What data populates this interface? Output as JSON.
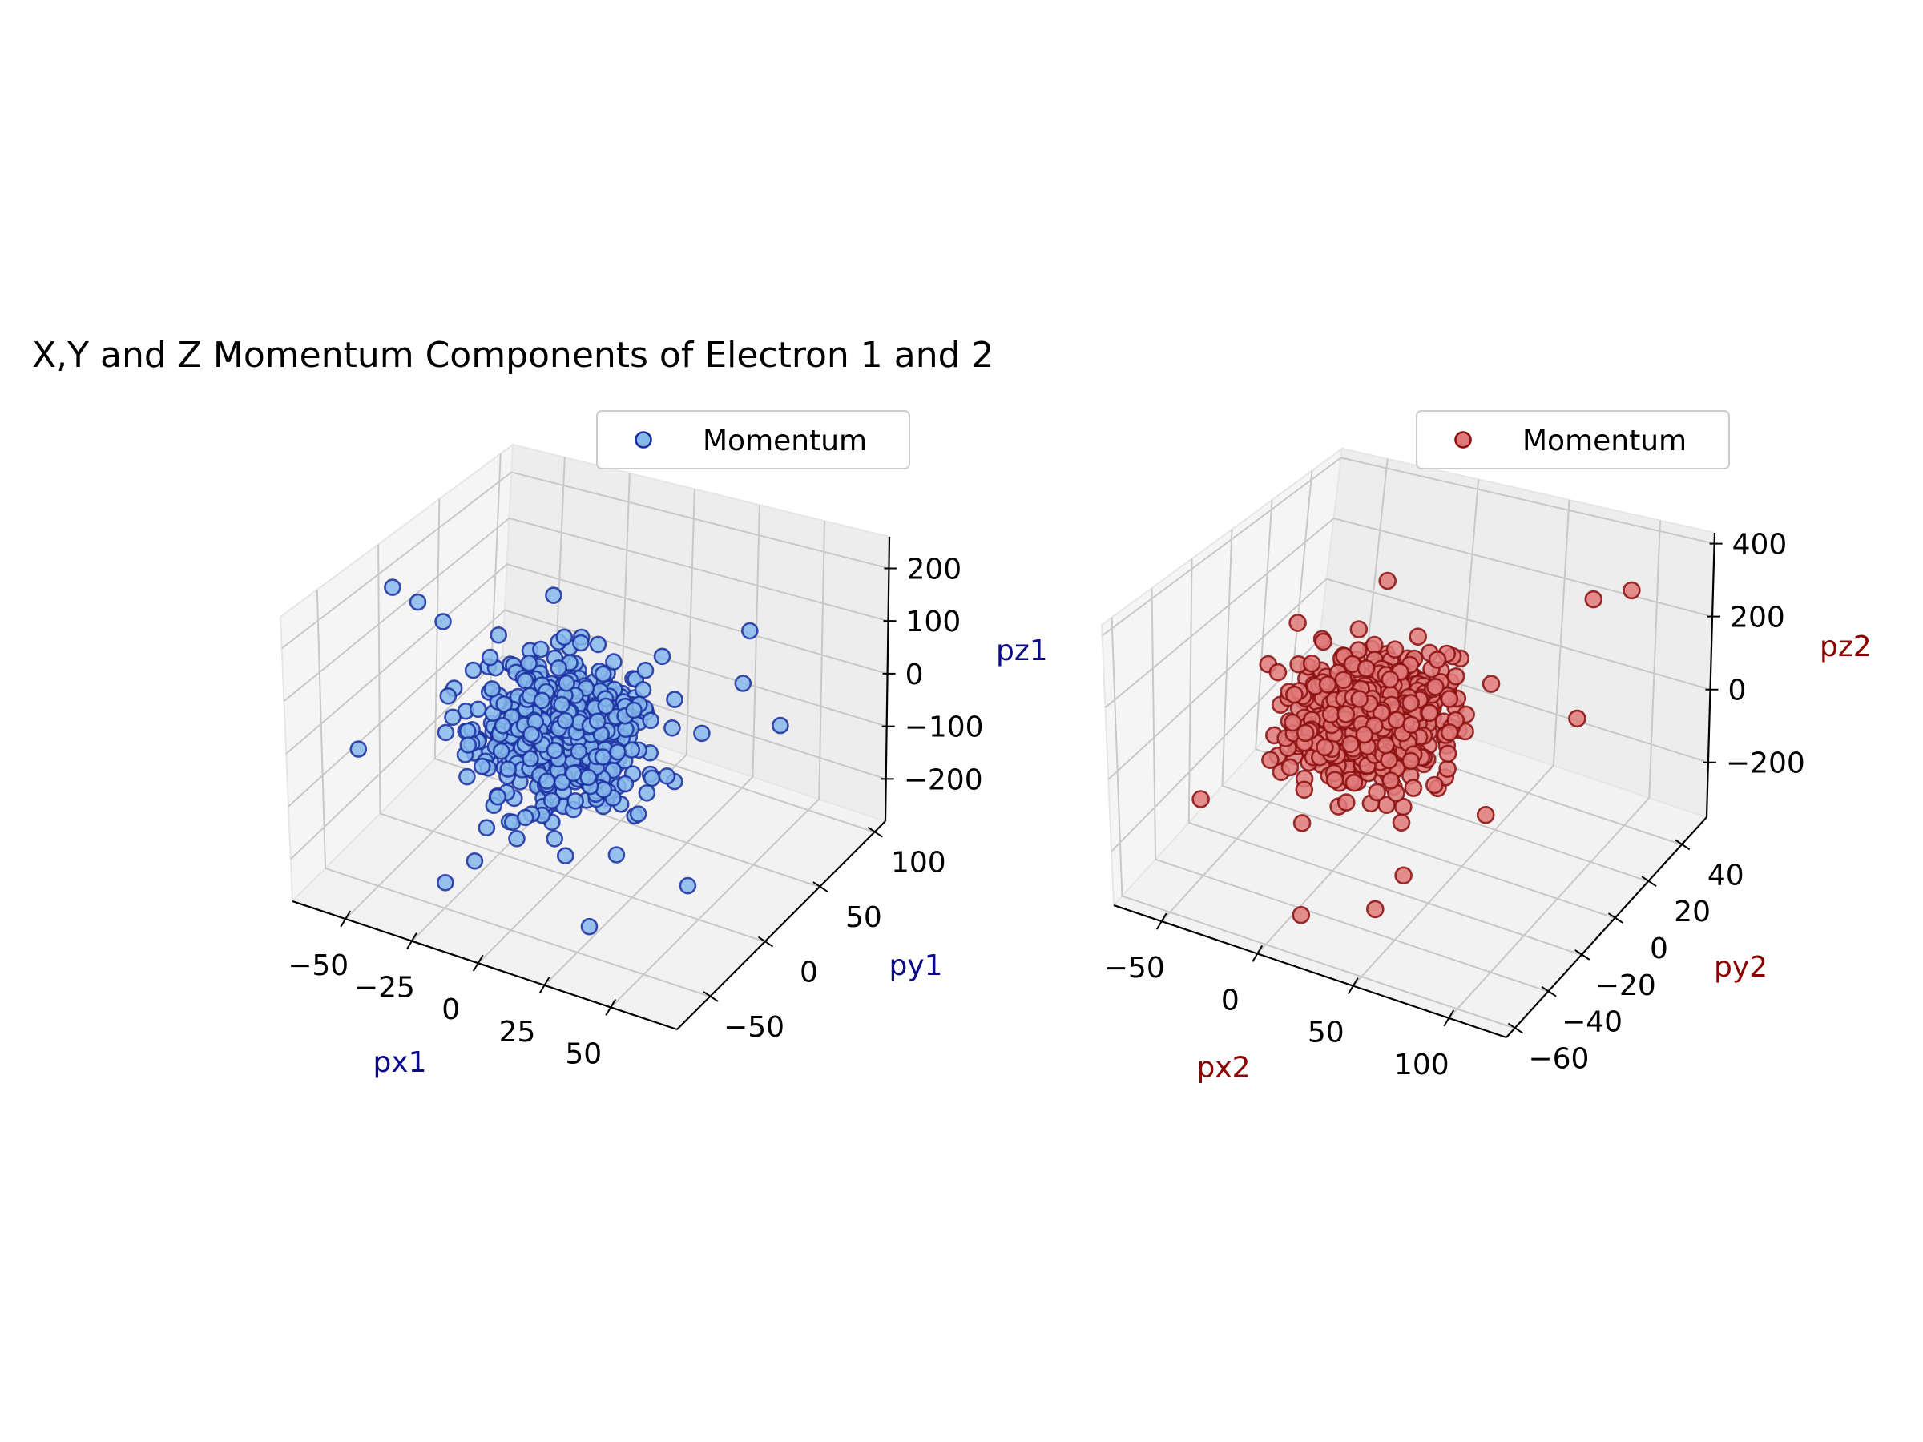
{
  "title": "X,Y and Z Momentum Components of Electron 1 and 2",
  "chart_data": [
    {
      "type": "scatter3d",
      "legend": "Momentum",
      "legend_loc": "upper right",
      "colors": {
        "face": "#87b8ec",
        "edge": "#1a2ea0",
        "label": "#0b0b8a"
      },
      "xlabel": "px1",
      "ylabel": "py1",
      "zlabel": "pz1",
      "xlim": [
        -70,
        75
      ],
      "ylim": [
        -80,
        110
      ],
      "zlim": [
        -280,
        260
      ],
      "xticks": [
        -50,
        -25,
        0,
        25,
        50
      ],
      "xtick_labels": [
        "−50",
        "−25",
        "0",
        "25",
        "50"
      ],
      "yticks": [
        -50,
        0,
        50,
        100
      ],
      "ytick_labels": [
        "−50",
        "0",
        "50",
        "100"
      ],
      "zticks": [
        -200,
        -100,
        0,
        100,
        200
      ],
      "ztick_labels": [
        "−200",
        "−100",
        "0",
        "100",
        "200"
      ],
      "grid": true,
      "n_points": 600,
      "distribution": {
        "x_sd": 14,
        "y_sd": 18,
        "z_sd": 55
      },
      "outliers": [
        [
          -60,
          -10,
          210
        ],
        [
          -55,
          0,
          170
        ],
        [
          -50,
          10,
          120
        ],
        [
          60,
          20,
          160
        ],
        [
          65,
          40,
          40
        ],
        [
          55,
          -20,
          -160
        ],
        [
          -65,
          -30,
          -80
        ],
        [
          40,
          70,
          120
        ],
        [
          -20,
          -60,
          -200
        ],
        [
          30,
          -50,
          -220
        ]
      ]
    },
    {
      "type": "scatter3d",
      "legend": "Momentum",
      "legend_loc": "upper right",
      "colors": {
        "face": "#e07a7a",
        "edge": "#8b0e0e",
        "label": "#8b0000"
      },
      "xlabel": "px2",
      "ylabel": "py2",
      "zlabel": "pz2",
      "xlim": [
        -75,
        130
      ],
      "ylim": [
        -65,
        55
      ],
      "zlim": [
        -350,
        430
      ],
      "xticks": [
        -50,
        0,
        50,
        100
      ],
      "xtick_labels": [
        "−50",
        "0",
        "50",
        "100"
      ],
      "yticks": [
        -60,
        -40,
        -20,
        0,
        20,
        40
      ],
      "ytick_labels": [
        "−60",
        "−40",
        "−20",
        "0",
        "20",
        "40"
      ],
      "zticks": [
        -200,
        0,
        200,
        400
      ],
      "ztick_labels": [
        "−200",
        "0",
        "200",
        "400"
      ],
      "grid": true,
      "n_points": 600,
      "distribution": {
        "x_sd": 18,
        "y_sd": 12,
        "z_sd": 70
      },
      "outliers": [
        [
          110,
          30,
          380
        ],
        [
          120,
          -10,
          250
        ],
        [
          80,
          40,
          260
        ],
        [
          -60,
          -30,
          -200
        ],
        [
          -50,
          20,
          -250
        ],
        [
          40,
          -40,
          -280
        ],
        [
          90,
          -30,
          30
        ],
        [
          -30,
          40,
          150
        ],
        [
          60,
          -45,
          -120
        ],
        [
          10,
          -50,
          -300
        ]
      ]
    }
  ]
}
